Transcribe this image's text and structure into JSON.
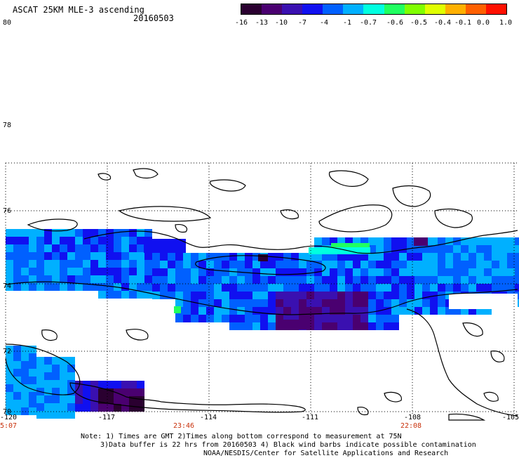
{
  "header": {
    "title": "ASCAT 25KM MLE-3 ascending",
    "date": "20160503"
  },
  "colorbar": {
    "tick_labels": [
      "-16",
      "-13",
      "-10",
      "-7",
      "-4",
      "-1",
      "-0.7",
      "-0.6",
      "-0.5",
      "-0.4",
      "-0.1",
      "0.0",
      "1.0"
    ],
    "colors": [
      "#2a0030",
      "#4a0070",
      "#3a10b0",
      "#1010f0",
      "#0060ff",
      "#00b0ff",
      "#00ffe0",
      "#20ff60",
      "#80ff00",
      "#e0ff00",
      "#ffb000",
      "#ff6000",
      "#ff1000"
    ]
  },
  "map": {
    "lat_labels": [
      "80",
      "78",
      "76",
      "74",
      "72",
      "70"
    ],
    "lon_labels": [
      "-120",
      "-117",
      "-114",
      "-111",
      "-108",
      "-105"
    ],
    "time_labels": [
      "5:07",
      "23:46",
      "22:08"
    ],
    "time_color": "#c8300a"
  },
  "footer": {
    "line1": "Note: 1) Times are GMT 2)Times along bottom correspond to measurement at 75N",
    "line2": "3)Data buffer is 22 hrs from 20160503 4) Black wind barbs indicate possible contamination",
    "line3": "NOAA/NESDIS/Center for Satellite Applications and Research"
  }
}
